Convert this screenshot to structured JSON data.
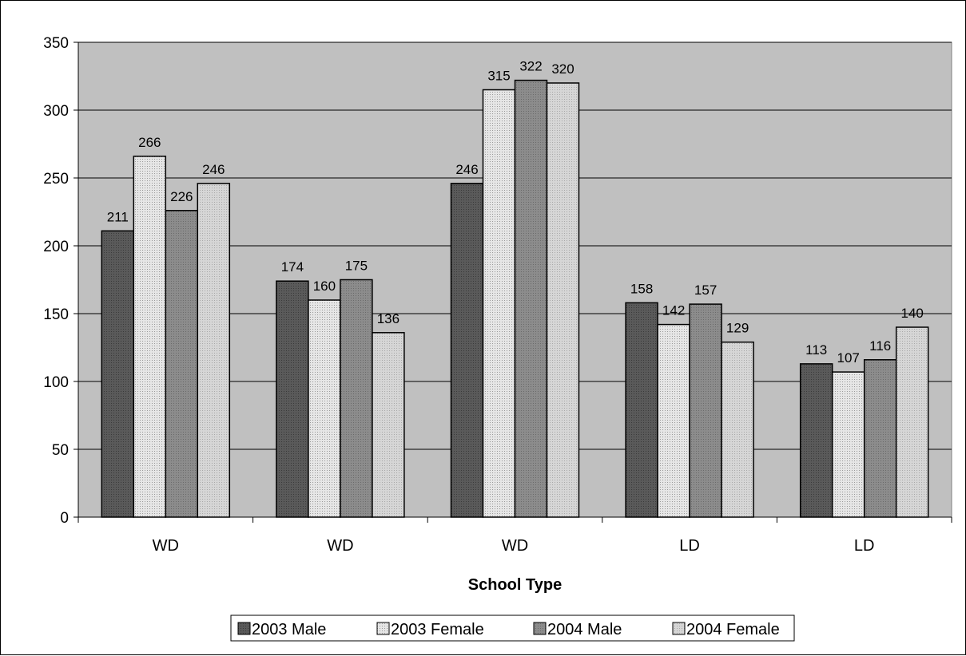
{
  "chart_data": {
    "type": "bar",
    "title": "",
    "xlabel": "School Type",
    "ylabel": "",
    "categories": [
      "WD",
      "WD",
      "WD",
      "LD",
      "LD"
    ],
    "series": [
      {
        "name": "2003 Male",
        "values": [
          211,
          174,
          246,
          158,
          113
        ],
        "color": "#5a5a5a"
      },
      {
        "name": "2003 Female",
        "values": [
          266,
          160,
          315,
          142,
          107
        ],
        "color": "#d9d9d9"
      },
      {
        "name": "2004 Male",
        "values": [
          226,
          175,
          322,
          157,
          116
        ],
        "color": "#8c8c8c"
      },
      {
        "name": "2004 Female",
        "values": [
          246,
          136,
          320,
          129,
          140
        ],
        "color": "#cfcfcf"
      }
    ],
    "ylim": [
      0,
      350
    ],
    "yticks": [
      0,
      50,
      100,
      150,
      200,
      250,
      300,
      350
    ],
    "grid": true,
    "legend_position": "bottom",
    "plot_background": "#c0c0c0"
  }
}
